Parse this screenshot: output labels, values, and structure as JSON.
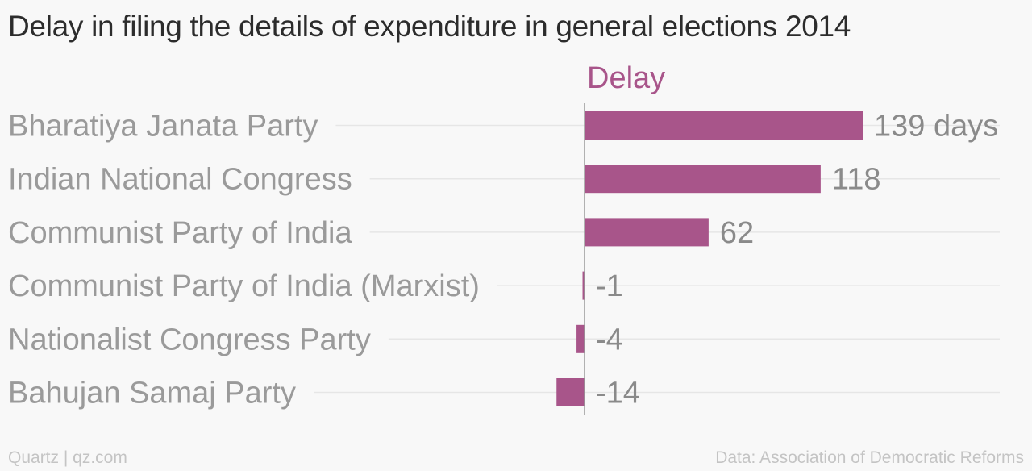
{
  "chart_data": {
    "type": "bar",
    "orientation": "horizontal",
    "title": "Delay in filing the details of expenditure in general elections 2014",
    "series": [
      {
        "name": "Delay",
        "color": "#a8558a",
        "values": [
          139,
          118,
          62,
          -1,
          -4,
          -14
        ],
        "value_labels": [
          "139 days",
          "118",
          "62",
          "-1",
          "-4",
          "-14"
        ]
      }
    ],
    "categories": [
      "Bharatiya Janata Party",
      "Indian National Congress",
      "Communist Party of India",
      "Communist Party of India (Marxist)",
      "Nationalist Congress Party",
      "Bahujan Samaj Party"
    ],
    "xlim": [
      -14,
      139
    ],
    "grid": true,
    "legend": "top"
  },
  "footer": {
    "credit": "Quartz | qz.com",
    "source": "Data: Association of Democratic Reforms"
  }
}
